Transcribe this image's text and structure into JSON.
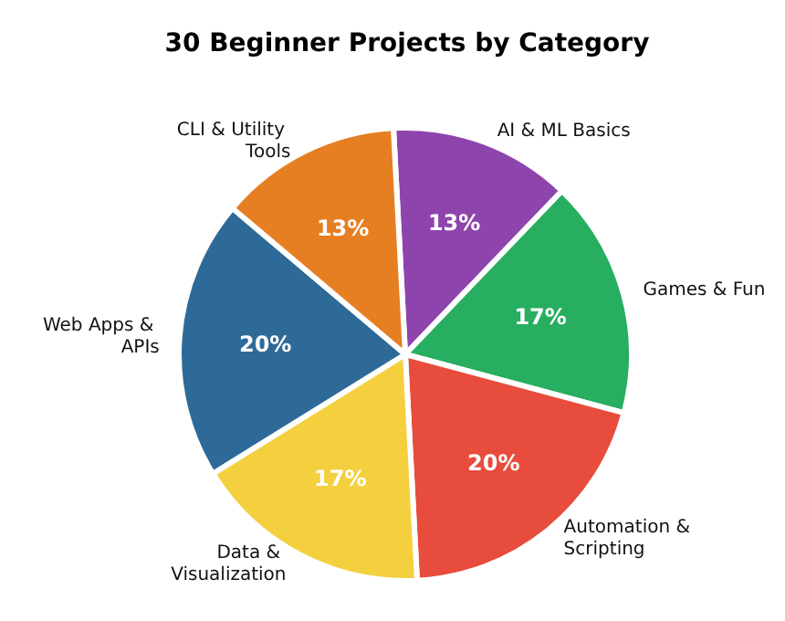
{
  "chart_data": {
    "type": "pie",
    "title": "30 Beginner Projects by Category",
    "categories": [
      "AI & ML Basics",
      "Games & Fun",
      "Automation & Scripting",
      "Data & Visualization",
      "Web Apps & APIs",
      "CLI & Utility Tools"
    ],
    "values": [
      13,
      17,
      20,
      17,
      20,
      13
    ],
    "colors": [
      "#8e44ad",
      "#27ae60",
      "#e74c3c",
      "#f4d03f",
      "#2e6a97",
      "#e67e22"
    ],
    "value_labels": [
      "13%",
      "17%",
      "20%",
      "17%",
      "20%",
      "13%"
    ],
    "legend": false
  }
}
